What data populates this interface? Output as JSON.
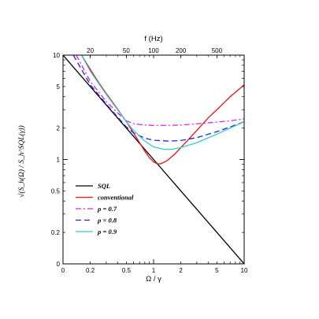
{
  "chart_data": {
    "type": "line",
    "xlabel": "Ω / γ",
    "x2label": "f (Hz)",
    "ylabel": "√(S_h(Ω) / S_h^SQL(γ))",
    "xscale": "log",
    "yscale": "log",
    "xlim": [
      0.1,
      10
    ],
    "ylim": [
      0.1,
      10
    ],
    "x_ticks": [
      {
        "value": 0.1,
        "label": "0"
      },
      {
        "value": 0.2,
        "label": "0.2"
      },
      {
        "value": 0.5,
        "label": "0.5"
      },
      {
        "value": 1,
        "label": "1"
      },
      {
        "value": 2,
        "label": "2"
      },
      {
        "value": 5,
        "label": "5"
      },
      {
        "value": 10,
        "label": "10"
      }
    ],
    "y_ticks": [
      {
        "value": 0.1,
        "label": "0"
      },
      {
        "value": 0.2,
        "label": "0.2"
      },
      {
        "value": 0.5,
        "label": "0.5"
      },
      {
        "value": 1,
        "label": "1"
      },
      {
        "value": 2,
        "label": "2"
      },
      {
        "value": 5,
        "label": "5"
      },
      {
        "value": 10,
        "label": "10"
      }
    ],
    "top_ticks": [
      {
        "value": 0.2,
        "label": "20"
      },
      {
        "value": 0.5,
        "label": "50"
      },
      {
        "value": 1,
        "label": "100"
      },
      {
        "value": 2,
        "label": "200"
      },
      {
        "value": 5,
        "label": "500"
      }
    ],
    "legend_position": "lower-left",
    "series": [
      {
        "name": "SQL",
        "color": "#000000",
        "dash": "solid",
        "x": [
          0.1,
          0.2,
          0.5,
          1,
          2,
          5,
          10
        ],
        "y": [
          10,
          5,
          2,
          1,
          0.5,
          0.2,
          0.1
        ]
      },
      {
        "name": "conventional",
        "color": "#ee1111",
        "dash": "solid",
        "x": [
          0.16,
          0.2,
          0.25,
          0.3,
          0.4,
          0.5,
          0.6,
          0.7,
          0.8,
          0.9,
          1.0,
          1.1,
          1.2,
          1.4,
          1.7,
          2,
          2.5,
          3,
          4,
          5,
          6,
          7,
          8,
          10
        ],
        "y": [
          10,
          7.3,
          5.4,
          4.3,
          3.05,
          2.3,
          1.8,
          1.45,
          1.2,
          1.04,
          0.95,
          0.91,
          0.91,
          0.97,
          1.12,
          1.3,
          1.6,
          1.9,
          2.5,
          3.0,
          3.5,
          4.0,
          4.4,
          5.2
        ]
      },
      {
        "name": "ρ = 0.7",
        "color": "#dd22dd",
        "dash": "dashdot",
        "x": [
          0.14,
          0.2,
          0.3,
          0.4,
          0.5,
          0.6,
          0.8,
          1,
          1.5,
          2,
          3,
          5,
          7,
          10
        ],
        "y": [
          10,
          5.6,
          3.6,
          2.8,
          2.35,
          2.2,
          2.14,
          2.12,
          2.12,
          2.14,
          2.2,
          2.28,
          2.35,
          2.45
        ]
      },
      {
        "name": "ρ = 0.8",
        "color": "#2222cc",
        "dash": "dashed",
        "x": [
          0.13,
          0.2,
          0.3,
          0.4,
          0.5,
          0.6,
          0.8,
          1,
          1.5,
          2,
          3,
          5,
          7,
          10
        ],
        "y": [
          10,
          5.2,
          3.4,
          2.55,
          2.05,
          1.8,
          1.6,
          1.53,
          1.5,
          1.52,
          1.62,
          1.85,
          2.05,
          2.3
        ]
      },
      {
        "name": "ρ = 0.9",
        "color": "#33cccc",
        "dash": "solid",
        "x": [
          0.16,
          0.2,
          0.3,
          0.4,
          0.5,
          0.6,
          0.8,
          1,
          1.3,
          1.6,
          2,
          3,
          5,
          7,
          10
        ],
        "y": [
          10,
          7.0,
          4.2,
          3.0,
          2.3,
          1.9,
          1.5,
          1.32,
          1.25,
          1.25,
          1.3,
          1.45,
          1.75,
          2.0,
          2.3
        ]
      }
    ]
  }
}
